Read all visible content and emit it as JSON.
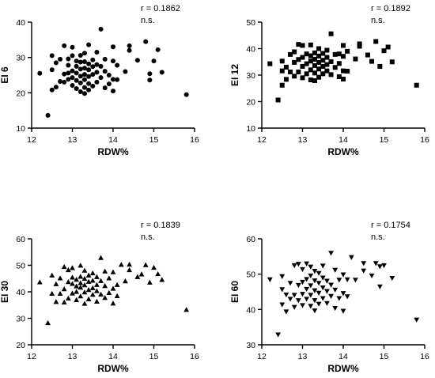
{
  "chart_data": [
    {
      "type": "scatter",
      "marker": "circle",
      "xlabel": "RDW%",
      "ylabel": "EI 6",
      "xlim": [
        12,
        16
      ],
      "ylim": [
        10,
        40
      ],
      "xticks": [
        "12",
        "13",
        "14",
        "15",
        "16"
      ],
      "yticks": [
        "10",
        "20",
        "30",
        "40"
      ],
      "annotation_r": "r = 0.1862",
      "annotation_sig": "n.s.",
      "points": [
        [
          12.2,
          25.5
        ],
        [
          12.4,
          13.6
        ],
        [
          12.5,
          20.8
        ],
        [
          12.5,
          26.5
        ],
        [
          12.5,
          30.5
        ],
        [
          12.6,
          21.6
        ],
        [
          12.6,
          28.5
        ],
        [
          12.7,
          23.2
        ],
        [
          12.7,
          29.5
        ],
        [
          12.8,
          25.3
        ],
        [
          12.8,
          33.3
        ],
        [
          12.8,
          23.0
        ],
        [
          12.9,
          25.6
        ],
        [
          12.9,
          27.8
        ],
        [
          12.9,
          29.6
        ],
        [
          12.9,
          23.8
        ],
        [
          13.0,
          22.1
        ],
        [
          13.0,
          24.3
        ],
        [
          13.0,
          26.2
        ],
        [
          13.0,
          30.5
        ],
        [
          13.0,
          32.9
        ],
        [
          13.1,
          21.2
        ],
        [
          13.1,
          23.5
        ],
        [
          13.1,
          25.6
        ],
        [
          13.1,
          27.5
        ],
        [
          13.1,
          29.0
        ],
        [
          13.2,
          20.3
        ],
        [
          13.2,
          22.8
        ],
        [
          13.2,
          24.7
        ],
        [
          13.2,
          26.7
        ],
        [
          13.2,
          28.7
        ],
        [
          13.2,
          30.6
        ],
        [
          13.3,
          19.8
        ],
        [
          13.3,
          21.5
        ],
        [
          13.3,
          23.7
        ],
        [
          13.3,
          25.2
        ],
        [
          13.3,
          27.0
        ],
        [
          13.3,
          28.8
        ],
        [
          13.3,
          31.2
        ],
        [
          13.4,
          20.8
        ],
        [
          13.4,
          22.6
        ],
        [
          13.4,
          24.6
        ],
        [
          13.4,
          26.5
        ],
        [
          13.4,
          28.2
        ],
        [
          13.4,
          33.6
        ],
        [
          13.5,
          21.9
        ],
        [
          13.5,
          25.2
        ],
        [
          13.5,
          27.4
        ],
        [
          13.5,
          29.3
        ],
        [
          13.6,
          23.0
        ],
        [
          13.6,
          25.8
        ],
        [
          13.6,
          28.0
        ],
        [
          13.6,
          31.5
        ],
        [
          13.7,
          38.0
        ],
        [
          13.7,
          24.3
        ],
        [
          13.7,
          27.5
        ],
        [
          13.8,
          21.4
        ],
        [
          13.8,
          26.1
        ],
        [
          13.8,
          29.5
        ],
        [
          13.9,
          22.5
        ],
        [
          13.9,
          25.0
        ],
        [
          14.0,
          20.5
        ],
        [
          14.0,
          23.8
        ],
        [
          14.0,
          29.0
        ],
        [
          14.0,
          33.0
        ],
        [
          14.1,
          23.7
        ],
        [
          14.1,
          27.8
        ],
        [
          14.3,
          26.0
        ],
        [
          14.4,
          32.0
        ],
        [
          14.4,
          33.3
        ],
        [
          14.6,
          29.2
        ],
        [
          14.8,
          34.5
        ],
        [
          14.9,
          23.6
        ],
        [
          14.9,
          25.4
        ],
        [
          15.0,
          29.0
        ],
        [
          15.1,
          32.2
        ],
        [
          15.2,
          25.8
        ],
        [
          15.8,
          19.5
        ]
      ]
    },
    {
      "type": "scatter",
      "marker": "square",
      "xlabel": "RDW%",
      "ylabel": "EI 12",
      "xlim": [
        12,
        16
      ],
      "ylim": [
        10,
        50
      ],
      "xticks": [
        "12",
        "13",
        "14",
        "15",
        "16"
      ],
      "yticks": [
        "10",
        "20",
        "30",
        "40",
        "50"
      ],
      "annotation_r": "r = 0.1892",
      "annotation_sig": "n.s.",
      "points": [
        [
          12.2,
          34.3
        ],
        [
          12.4,
          20.6
        ],
        [
          12.5,
          26.2
        ],
        [
          12.5,
          31.6
        ],
        [
          12.5,
          35.3
        ],
        [
          12.6,
          28.4
        ],
        [
          12.6,
          33.0
        ],
        [
          12.7,
          31.2
        ],
        [
          12.7,
          37.8
        ],
        [
          12.8,
          29.6
        ],
        [
          12.8,
          34.8
        ],
        [
          12.8,
          38.8
        ],
        [
          12.9,
          31.2
        ],
        [
          12.9,
          35.9
        ],
        [
          12.9,
          41.6
        ],
        [
          13.0,
          29.0
        ],
        [
          13.0,
          33.3
        ],
        [
          13.0,
          36.7
        ],
        [
          13.0,
          41.2
        ],
        [
          13.1,
          30.5
        ],
        [
          13.1,
          34.3
        ],
        [
          13.1,
          38.0
        ],
        [
          13.2,
          28.2
        ],
        [
          13.2,
          32.0
        ],
        [
          13.2,
          35.3
        ],
        [
          13.2,
          37.3
        ],
        [
          13.2,
          41.4
        ],
        [
          13.3,
          27.9
        ],
        [
          13.3,
          30.8
        ],
        [
          13.3,
          33.6
        ],
        [
          13.3,
          36.0
        ],
        [
          13.3,
          38.4
        ],
        [
          13.4,
          29.2
        ],
        [
          13.4,
          32.3
        ],
        [
          13.4,
          34.8
        ],
        [
          13.4,
          37.2
        ],
        [
          13.4,
          40.0
        ],
        [
          13.5,
          30.5
        ],
        [
          13.5,
          33.3
        ],
        [
          13.5,
          35.6
        ],
        [
          13.5,
          38.2
        ],
        [
          13.6,
          31.6
        ],
        [
          13.6,
          34.0
        ],
        [
          13.6,
          36.7
        ],
        [
          13.6,
          39.4
        ],
        [
          13.7,
          45.6
        ],
        [
          13.7,
          30.2
        ],
        [
          13.7,
          35.1
        ],
        [
          13.8,
          32.9
        ],
        [
          13.8,
          37.8
        ],
        [
          13.9,
          29.4
        ],
        [
          13.9,
          34.4
        ],
        [
          13.9,
          38.0
        ],
        [
          14.0,
          28.5
        ],
        [
          14.0,
          31.6
        ],
        [
          14.0,
          37.1
        ],
        [
          14.0,
          41.2
        ],
        [
          14.1,
          31.5
        ],
        [
          14.1,
          39.0
        ],
        [
          14.3,
          36.1
        ],
        [
          14.4,
          40.9
        ],
        [
          14.4,
          41.8
        ],
        [
          14.6,
          37.6
        ],
        [
          14.7,
          35.2
        ],
        [
          14.8,
          42.7
        ],
        [
          14.9,
          33.3
        ],
        [
          15.0,
          39.2
        ],
        [
          15.1,
          40.6
        ],
        [
          15.2,
          35.0
        ],
        [
          15.8,
          26.2
        ]
      ]
    },
    {
      "type": "scatter",
      "marker": "triangle-up",
      "xlabel": "RDW%",
      "ylabel": "EI 30",
      "xlim": [
        12,
        16
      ],
      "ylim": [
        20,
        60
      ],
      "xticks": [
        "12",
        "13",
        "14",
        "15",
        "16"
      ],
      "yticks": [
        "20",
        "30",
        "40",
        "50",
        "60"
      ],
      "annotation_r": "r = 0.1839",
      "annotation_sig": "n.s.",
      "points": [
        [
          12.2,
          43.6
        ],
        [
          12.4,
          28.2
        ],
        [
          12.5,
          39.3
        ],
        [
          12.5,
          46.2
        ],
        [
          12.6,
          36.2
        ],
        [
          12.6,
          42.9
        ],
        [
          12.7,
          39.3
        ],
        [
          12.7,
          45.1
        ],
        [
          12.8,
          36.0
        ],
        [
          12.8,
          41.0
        ],
        [
          12.8,
          49.4
        ],
        [
          12.9,
          37.5
        ],
        [
          12.9,
          43.7
        ],
        [
          12.9,
          48.2
        ],
        [
          13.0,
          39.4
        ],
        [
          13.0,
          43.0
        ],
        [
          13.0,
          45.4
        ],
        [
          13.0,
          49.0
        ],
        [
          13.1,
          36.9
        ],
        [
          13.1,
          40.0
        ],
        [
          13.1,
          42.1
        ],
        [
          13.1,
          44.6
        ],
        [
          13.2,
          38.3
        ],
        [
          13.2,
          41.6
        ],
        [
          13.2,
          43.3
        ],
        [
          13.2,
          45.7
        ],
        [
          13.2,
          49.9
        ],
        [
          13.3,
          35.5
        ],
        [
          13.3,
          39.8
        ],
        [
          13.3,
          42.5
        ],
        [
          13.3,
          44.9
        ],
        [
          13.3,
          48.0
        ],
        [
          13.4,
          37.2
        ],
        [
          13.4,
          40.7
        ],
        [
          13.4,
          43.8
        ],
        [
          13.4,
          46.2
        ],
        [
          13.5,
          38.9
        ],
        [
          13.5,
          41.4
        ],
        [
          13.5,
          44.2
        ],
        [
          13.5,
          47.0
        ],
        [
          13.6,
          36.3
        ],
        [
          13.6,
          40.3
        ],
        [
          13.6,
          42.6
        ],
        [
          13.6,
          45.6
        ],
        [
          13.7,
          52.8
        ],
        [
          13.7,
          39.0
        ],
        [
          13.7,
          44.1
        ],
        [
          13.8,
          37.7
        ],
        [
          13.8,
          42.2
        ],
        [
          13.8,
          47.7
        ],
        [
          13.9,
          39.6
        ],
        [
          13.9,
          45.1
        ],
        [
          14.0,
          35.6
        ],
        [
          14.0,
          41.2
        ],
        [
          14.0,
          47.4
        ],
        [
          14.1,
          38.4
        ],
        [
          14.1,
          42.6
        ],
        [
          14.2,
          50.2
        ],
        [
          14.3,
          44.0
        ],
        [
          14.4,
          48.2
        ],
        [
          14.4,
          50.3
        ],
        [
          14.6,
          45.6
        ],
        [
          14.7,
          46.6
        ],
        [
          14.8,
          50.1
        ],
        [
          14.9,
          43.5
        ],
        [
          15.0,
          49.1
        ],
        [
          15.1,
          46.7
        ],
        [
          15.2,
          44.5
        ],
        [
          15.8,
          33.2
        ]
      ]
    },
    {
      "type": "scatter",
      "marker": "triangle-down",
      "xlabel": "RDW%",
      "ylabel": "EI 60",
      "xlim": [
        12,
        16
      ],
      "ylim": [
        30,
        60
      ],
      "xticks": [
        "12",
        "13",
        "14",
        "15",
        "16"
      ],
      "yticks": [
        "30",
        "40",
        "50",
        "60"
      ],
      "annotation_r": "r = 0.1754",
      "annotation_sig": "n.s.",
      "points": [
        [
          12.2,
          48.5
        ],
        [
          12.4,
          32.9
        ],
        [
          12.5,
          41.4
        ],
        [
          12.5,
          45.7
        ],
        [
          12.5,
          49.4
        ],
        [
          12.6,
          39.4
        ],
        [
          12.6,
          44.2
        ],
        [
          12.7,
          43.0
        ],
        [
          12.7,
          47.5
        ],
        [
          12.8,
          40.7
        ],
        [
          12.8,
          44.1
        ],
        [
          12.8,
          52.5
        ],
        [
          12.9,
          42.6
        ],
        [
          12.9,
          46.9
        ],
        [
          12.9,
          52.9
        ],
        [
          13.0,
          41.2
        ],
        [
          13.0,
          44.4
        ],
        [
          13.0,
          47.8
        ],
        [
          13.0,
          51.4
        ],
        [
          13.1,
          43.0
        ],
        [
          13.1,
          45.8
        ],
        [
          13.1,
          48.6
        ],
        [
          13.1,
          53.0
        ],
        [
          13.2,
          41.0
        ],
        [
          13.2,
          44.1
        ],
        [
          13.2,
          46.8
        ],
        [
          13.2,
          49.6
        ],
        [
          13.2,
          52.1
        ],
        [
          13.3,
          39.7
        ],
        [
          13.3,
          42.6
        ],
        [
          13.3,
          45.4
        ],
        [
          13.3,
          48.2
        ],
        [
          13.3,
          50.9
        ],
        [
          13.4,
          41.6
        ],
        [
          13.4,
          44.7
        ],
        [
          13.4,
          47.5
        ],
        [
          13.4,
          50.3
        ],
        [
          13.5,
          43.2
        ],
        [
          13.5,
          46.2
        ],
        [
          13.5,
          49.0
        ],
        [
          13.5,
          52.4
        ],
        [
          13.6,
          41.8
        ],
        [
          13.6,
          45.2
        ],
        [
          13.6,
          48.1
        ],
        [
          13.7,
          56.0
        ],
        [
          13.7,
          43.8
        ],
        [
          13.7,
          47.0
        ],
        [
          13.8,
          40.4
        ],
        [
          13.8,
          45.6
        ],
        [
          13.8,
          51.2
        ],
        [
          13.9,
          43.2
        ],
        [
          13.9,
          48.4
        ],
        [
          14.0,
          39.6
        ],
        [
          14.0,
          44.6
        ],
        [
          14.0,
          49.9
        ],
        [
          14.1,
          43.7
        ],
        [
          14.1,
          48.5
        ],
        [
          14.2,
          54.8
        ],
        [
          14.3,
          48.4
        ],
        [
          14.5,
          53.1
        ],
        [
          14.5,
          51.0
        ],
        [
          14.7,
          49.6
        ],
        [
          14.8,
          53.1
        ],
        [
          14.9,
          46.5
        ],
        [
          14.9,
          52.2
        ],
        [
          15.0,
          52.5
        ],
        [
          15.2,
          48.9
        ],
        [
          15.8,
          37.1
        ]
      ]
    }
  ]
}
